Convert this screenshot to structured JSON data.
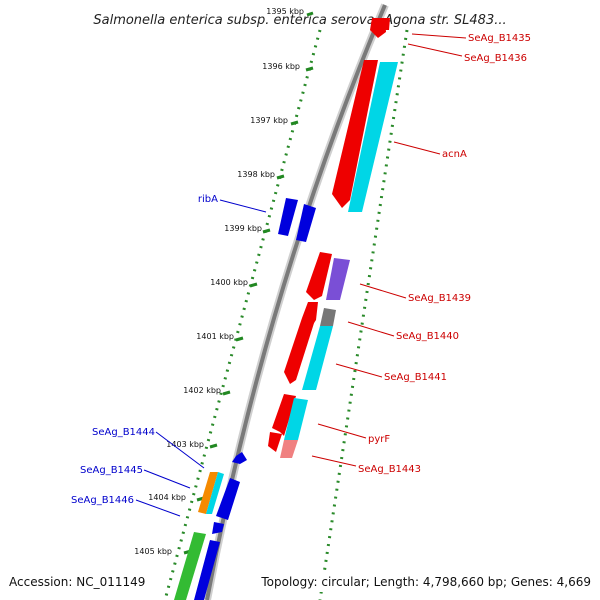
{
  "title": "Salmonella enterica subsp. enterica serovar Agona str. SL483...",
  "footer": {
    "accession": "Accession: NC_011149",
    "summary": "Topology: circular; Length: 4,798,660 bp; Genes: 4,669"
  },
  "kbp_labels": [
    "1395 kbp",
    "1396 kbp",
    "1397 kbp",
    "1398 kbp",
    "1399 kbp",
    "1400 kbp",
    "1401 kbp",
    "1402 kbp",
    "1403 kbp",
    "1404 kbp",
    "1405 kbp"
  ],
  "genes_forward": [
    "SeAg_B1435",
    "SeAg_B1436",
    "acnA",
    "SeAg_B1439",
    "SeAg_B1440",
    "SeAg_B1441",
    "pyrF",
    "SeAg_B1443"
  ],
  "genes_reverse": [
    "ribA",
    "SeAg_B1444",
    "SeAg_B1445",
    "SeAg_B1446"
  ],
  "colors": {
    "red": "#ee0000",
    "cyan": "#00d6e6",
    "blue": "#0000dd",
    "purple": "#7a4fd6",
    "gray": "#777777",
    "orange": "#f58a00",
    "green": "#33bb33",
    "pink": "#f08080",
    "forward_label": "#cc0000",
    "reverse_label": "#0000cc",
    "tick": "#228822"
  }
}
